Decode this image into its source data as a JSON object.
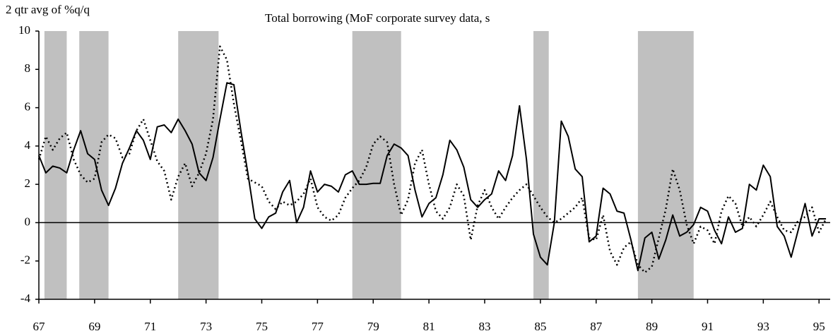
{
  "chart_data": {
    "type": "line",
    "title": "Total borrowing (MoF corporate survey data, s",
    "y_label": "2 qtr avg of %q/q",
    "x": [
      67,
      67.25,
      67.5,
      67.75,
      68,
      68.25,
      68.5,
      68.75,
      69,
      69.25,
      69.5,
      69.75,
      70,
      70.25,
      70.5,
      70.75,
      71,
      71.25,
      71.5,
      71.75,
      72,
      72.25,
      72.5,
      72.75,
      73,
      73.25,
      73.5,
      73.75,
      74,
      74.25,
      74.5,
      74.75,
      75,
      75.25,
      75.5,
      75.75,
      76,
      76.25,
      76.5,
      76.75,
      77,
      77.25,
      77.5,
      77.75,
      78,
      78.25,
      78.5,
      78.75,
      79,
      79.25,
      79.5,
      79.75,
      80,
      80.25,
      80.5,
      80.75,
      81,
      81.25,
      81.5,
      81.75,
      82,
      82.25,
      82.5,
      82.75,
      83,
      83.25,
      83.5,
      83.75,
      84,
      84.25,
      84.5,
      84.75,
      85,
      85.25,
      85.5,
      85.75,
      86,
      86.25,
      86.5,
      86.75,
      87,
      87.25,
      87.5,
      87.75,
      88,
      88.25,
      88.5,
      88.75,
      89,
      89.25,
      89.5,
      89.75,
      90,
      90.25,
      90.5,
      90.75,
      91,
      91.25,
      91.5,
      91.75,
      92,
      92.25,
      92.5,
      92.75,
      93,
      93.25,
      93.5,
      93.75,
      94,
      94.25,
      94.5,
      94.75,
      95,
      95.25
    ],
    "series": [
      {
        "color": "#000000",
        "dash": "solid",
        "values": [
          3.5,
          2.6,
          2.95,
          2.85,
          2.6,
          3.8,
          4.8,
          3.6,
          3.3,
          1.7,
          0.9,
          1.8,
          3.1,
          3.9,
          4.8,
          4.3,
          3.3,
          5.0,
          5.1,
          4.7,
          5.4,
          4.8,
          4.1,
          2.6,
          2.2,
          3.4,
          5.4,
          7.3,
          7.2,
          4.8,
          2.6,
          0.2,
          -0.3,
          0.3,
          0.5,
          1.6,
          2.2,
          0.0,
          0.8,
          2.7,
          1.6,
          2.0,
          1.9,
          1.6,
          2.5,
          2.7,
          2.0,
          2.0,
          2.05,
          2.05,
          3.5,
          4.1,
          3.9,
          3.5,
          1.7,
          0.3,
          1.0,
          1.3,
          2.5,
          4.3,
          3.8,
          2.9,
          1.2,
          0.8,
          1.2,
          1.5,
          2.7,
          2.2,
          3.5,
          6.1,
          3.3,
          -0.6,
          -1.8,
          -2.2,
          0.0,
          5.3,
          4.5,
          2.8,
          2.4,
          -1.0,
          -0.7,
          1.8,
          1.5,
          0.6,
          0.5,
          -0.9,
          -2.5,
          -0.8,
          -0.5,
          -1.9,
          -0.9,
          0.4,
          -0.7,
          -0.5,
          -0.1,
          0.8,
          0.6,
          -0.4,
          -1.1,
          0.3,
          -0.5,
          -0.3,
          2.0,
          1.7,
          3.0,
          2.4,
          -0.2,
          -0.7,
          -1.8,
          -0.4,
          1.0,
          -0.7,
          0.2,
          0.2
        ]
      },
      {
        "color": "#000000",
        "dash": "dotted",
        "values": [
          3.3,
          4.5,
          3.8,
          4.4,
          4.7,
          3.3,
          2.5,
          2.1,
          2.3,
          4.2,
          4.6,
          4.4,
          3.4,
          3.6,
          4.8,
          5.4,
          4.3,
          3.2,
          2.7,
          1.2,
          2.4,
          3.1,
          1.9,
          2.6,
          3.6,
          5.4,
          9.2,
          8.5,
          6.2,
          4.3,
          2.3,
          2.1,
          1.9,
          1.1,
          0.7,
          1.1,
          0.9,
          1.1,
          1.5,
          2.3,
          0.8,
          0.3,
          0.1,
          0.4,
          1.3,
          1.8,
          2.2,
          2.9,
          4.1,
          4.5,
          4.2,
          2.0,
          0.4,
          1.2,
          3.1,
          3.8,
          2.0,
          0.6,
          0.2,
          0.8,
          2.0,
          1.4,
          -0.9,
          0.9,
          1.7,
          0.8,
          0.2,
          0.8,
          1.3,
          1.7,
          2.0,
          1.4,
          0.8,
          0.3,
          0.0,
          0.2,
          0.5,
          0.8,
          1.3,
          -0.8,
          -0.9,
          0.4,
          -1.5,
          -2.2,
          -1.3,
          -1.0,
          -2.2,
          -2.6,
          -2.3,
          -0.8,
          0.7,
          2.8,
          1.7,
          -0.1,
          -1.1,
          -0.2,
          -0.4,
          -1.1,
          0.6,
          1.4,
          1.0,
          -0.2,
          0.3,
          -0.2,
          0.4,
          1.1,
          0.3,
          -0.4,
          -0.5,
          0.1,
          0.3,
          0.8,
          -0.5,
          0.2
        ]
      }
    ],
    "shaded_periods": [
      [
        67.2,
        68.0
      ],
      [
        68.45,
        69.5
      ],
      [
        72.0,
        73.45
      ],
      [
        78.25,
        80.0
      ],
      [
        84.75,
        85.3
      ],
      [
        88.5,
        90.5
      ]
    ],
    "shade_color": "#c0c0c0",
    "xlim": [
      67,
      95.4
    ],
    "xticks": [
      67,
      69,
      71,
      73,
      75,
      77,
      79,
      81,
      83,
      85,
      87,
      89,
      91,
      93,
      95
    ],
    "ylim": [
      -4,
      10
    ],
    "yticks": [
      -4,
      -2,
      0,
      2,
      4,
      6,
      8,
      10
    ],
    "zero_line": true
  }
}
